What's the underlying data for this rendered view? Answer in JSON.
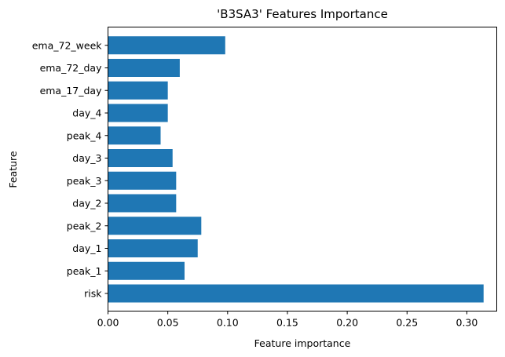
{
  "chart_data": {
    "type": "bar",
    "orientation": "horizontal",
    "title": "'B3SA3' Features Importance",
    "xlabel": "Feature importance",
    "ylabel": "Feature",
    "xlim": [
      0,
      0.325
    ],
    "xticks": [
      0.0,
      0.05,
      0.1,
      0.15,
      0.2,
      0.25,
      0.3
    ],
    "xtick_labels": [
      "0.00",
      "0.05",
      "0.10",
      "0.15",
      "0.20",
      "0.25",
      "0.30"
    ],
    "categories": [
      "risk",
      "peak_1",
      "day_1",
      "peak_2",
      "day_2",
      "peak_3",
      "day_3",
      "peak_4",
      "day_4",
      "ema_17_day",
      "ema_72_day",
      "ema_72_week"
    ],
    "values": [
      0.314,
      0.064,
      0.075,
      0.078,
      0.057,
      0.057,
      0.054,
      0.044,
      0.05,
      0.05,
      0.06,
      0.098
    ],
    "bar_color": "#1f77b4",
    "grid": false,
    "legend": false
  }
}
